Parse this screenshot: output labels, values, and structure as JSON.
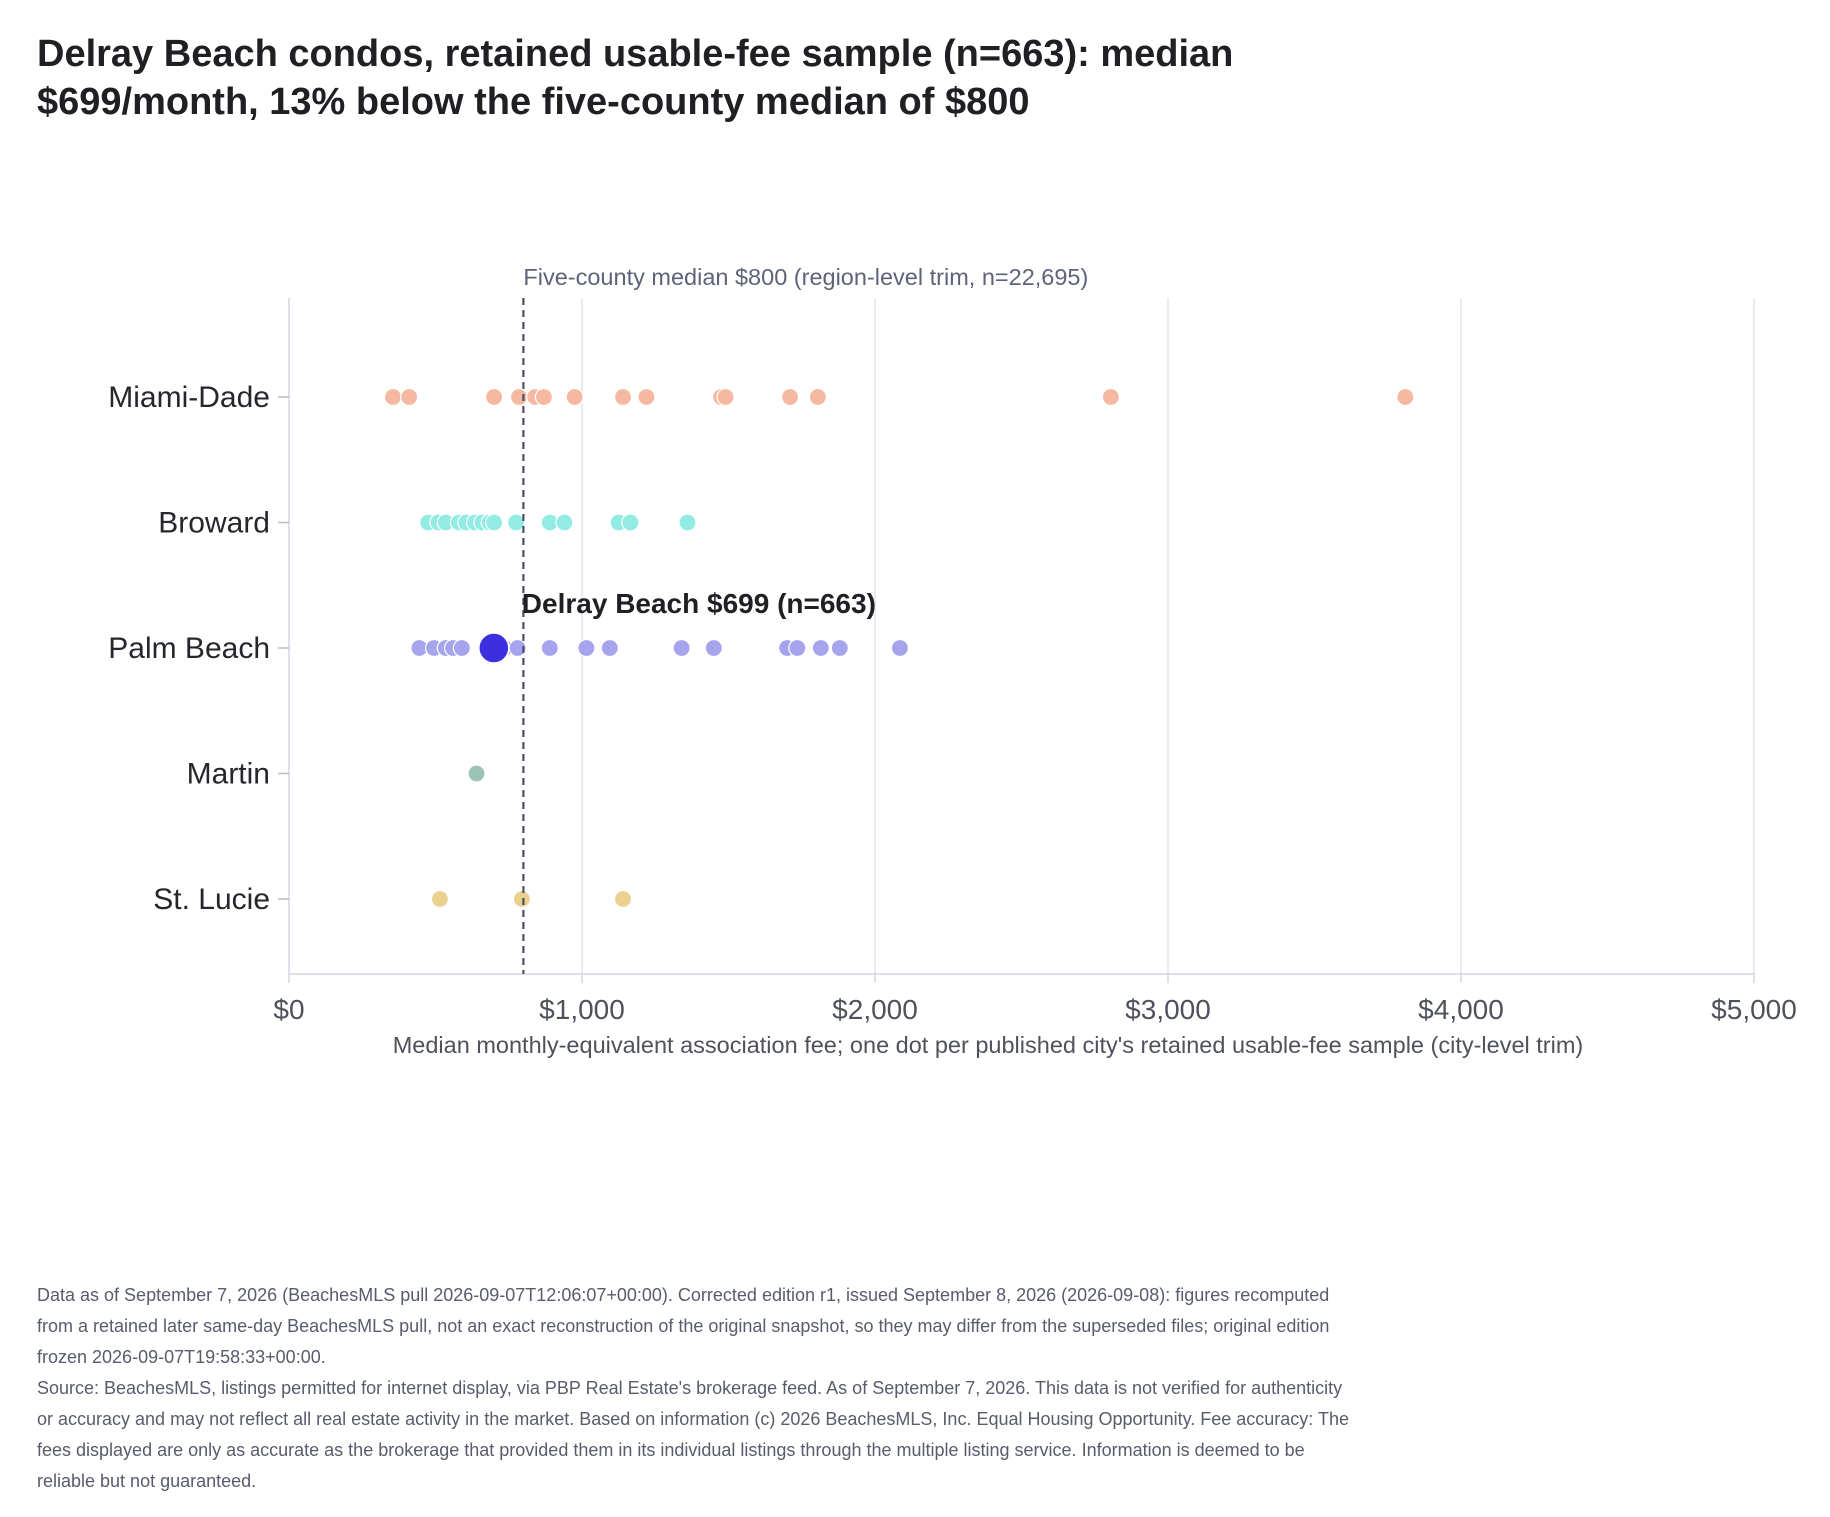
{
  "title": "Delray Beach condos, retained usable-fee sample (n=663): median $699/month, 13% below the five-county median of $800",
  "chart_data": {
    "type": "scatter",
    "title": "Delray Beach condos, retained usable-fee sample (n=663): median $699/month, 13% below the five-county median of $800",
    "xlabel": "Median monthly-equivalent association fee; one dot per published city's retained usable-fee sample (city-level trim)",
    "ylabel": "",
    "xlim": [
      0,
      5000
    ],
    "x_ticks": [
      0,
      1000,
      2000,
      3000,
      4000,
      5000
    ],
    "x_tick_labels": [
      "$0",
      "$1,000",
      "$2,000",
      "$3,000",
      "$4,000",
      "$5,000"
    ],
    "categories": [
      "Miami-Dade",
      "Broward",
      "Palm Beach",
      "Martin",
      "St. Lucie"
    ],
    "grid": "vertical gridlines at x ticks",
    "series": [
      {
        "color": "#f4b9a0",
        "values": [
          355,
          410,
          700,
          785,
          840,
          870,
          975,
          1140,
          1220,
          1475,
          1490,
          1710,
          1805,
          2805,
          3810
        ]
      },
      {
        "color": "#92ece4",
        "values": [
          475,
          510,
          535,
          580,
          605,
          635,
          660,
          685,
          700,
          775,
          890,
          940,
          1125,
          1165,
          1360
        ]
      },
      {
        "color": "#a7a4ee",
        "values": [
          445,
          495,
          535,
          560,
          590,
          735,
          780,
          890,
          1015,
          1095,
          1340,
          1450,
          1700,
          1735,
          1815,
          1880,
          2085
        ]
      },
      {
        "color": "#9cc3b5",
        "values": [
          640
        ]
      },
      {
        "color": "#ebd190",
        "values": [
          515,
          795,
          1140
        ]
      }
    ],
    "highlight": {
      "category": "Palm Beach",
      "value": 699,
      "label": "Delray Beach $699 (n=663)",
      "color": "#3b2fe0"
    },
    "reference_line": {
      "value": 800,
      "label": "Five-county median $800 (region-level trim, n=22,695)",
      "style": "dashed",
      "color": "#4a5160"
    }
  },
  "footnote": [
    "Data as of September 7, 2026 (BeachesMLS pull 2026-09-07T12:06:07+00:00). Corrected edition r1, issued September 8, 2026 (2026-09-08): figures recomputed from a retained later same-day BeachesMLS pull, not an exact reconstruction of the original snapshot, so they may differ from the superseded files; original edition frozen 2026-09-07T19:58:33+00:00.",
    "Source: BeachesMLS, listings permitted for internet display, via PBP Real Estate's brokerage feed. As of September 7, 2026. This data is not verified for authenticity or accuracy and may not reflect all real estate activity in the market. Based on information (c) 2026 BeachesMLS, Inc. Equal Housing Opportunity. Fee accuracy: The fees displayed are only as accurate as the brokerage that provided them in its individual listings through the multiple listing service. Information is deemed to be reliable but not guaranteed."
  ]
}
